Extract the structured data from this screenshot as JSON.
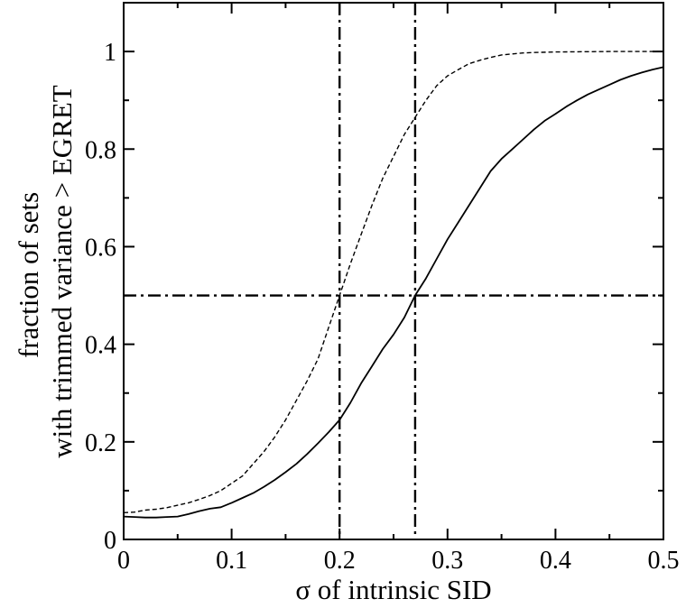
{
  "chart_data": {
    "type": "line",
    "title": "",
    "xlabel": "σ  of intrinsic SID",
    "ylabel_lines": [
      "fraction of sets",
      "with trimmed variance > EGRET"
    ],
    "xlim": [
      0,
      0.5
    ],
    "ylim": [
      0,
      1.1
    ],
    "x_ticks": [
      0,
      0.1,
      0.2,
      0.3,
      0.4,
      0.5
    ],
    "x_tick_labels": [
      "0",
      "0.1",
      "0.2",
      "0.3",
      "0.4",
      "0.5"
    ],
    "y_ticks": [
      0,
      0.2,
      0.4,
      0.6,
      0.8,
      1.0
    ],
    "y_tick_labels": [
      "0",
      "0.2",
      "0.4",
      "0.6",
      "0.8",
      "1"
    ],
    "grid": false,
    "legend": "none",
    "series": [
      {
        "style": "dashed",
        "color": "#000000",
        "points": [
          [
            0.0,
            0.055
          ],
          [
            0.01,
            0.056
          ],
          [
            0.02,
            0.06
          ],
          [
            0.03,
            0.062
          ],
          [
            0.04,
            0.065
          ],
          [
            0.05,
            0.07
          ],
          [
            0.06,
            0.075
          ],
          [
            0.07,
            0.082
          ],
          [
            0.08,
            0.09
          ],
          [
            0.09,
            0.1
          ],
          [
            0.1,
            0.115
          ],
          [
            0.11,
            0.13
          ],
          [
            0.12,
            0.155
          ],
          [
            0.13,
            0.18
          ],
          [
            0.14,
            0.21
          ],
          [
            0.15,
            0.245
          ],
          [
            0.16,
            0.285
          ],
          [
            0.17,
            0.325
          ],
          [
            0.18,
            0.37
          ],
          [
            0.19,
            0.435
          ],
          [
            0.2,
            0.5
          ],
          [
            0.21,
            0.565
          ],
          [
            0.22,
            0.625
          ],
          [
            0.23,
            0.685
          ],
          [
            0.24,
            0.74
          ],
          [
            0.25,
            0.785
          ],
          [
            0.26,
            0.83
          ],
          [
            0.27,
            0.865
          ],
          [
            0.28,
            0.9
          ],
          [
            0.29,
            0.93
          ],
          [
            0.3,
            0.95
          ],
          [
            0.31,
            0.963
          ],
          [
            0.32,
            0.975
          ],
          [
            0.33,
            0.982
          ],
          [
            0.34,
            0.988
          ],
          [
            0.35,
            0.993
          ],
          [
            0.36,
            0.995
          ],
          [
            0.37,
            0.997
          ],
          [
            0.38,
            0.998
          ],
          [
            0.4,
            0.999
          ],
          [
            0.45,
            1.0
          ],
          [
            0.5,
            1.0
          ]
        ]
      },
      {
        "style": "solid",
        "color": "#000000",
        "points": [
          [
            0.0,
            0.047
          ],
          [
            0.01,
            0.046
          ],
          [
            0.02,
            0.045
          ],
          [
            0.03,
            0.045
          ],
          [
            0.04,
            0.046
          ],
          [
            0.05,
            0.047
          ],
          [
            0.06,
            0.052
          ],
          [
            0.07,
            0.058
          ],
          [
            0.08,
            0.063
          ],
          [
            0.09,
            0.066
          ],
          [
            0.1,
            0.075
          ],
          [
            0.11,
            0.085
          ],
          [
            0.12,
            0.095
          ],
          [
            0.13,
            0.108
          ],
          [
            0.14,
            0.122
          ],
          [
            0.15,
            0.138
          ],
          [
            0.16,
            0.155
          ],
          [
            0.17,
            0.175
          ],
          [
            0.18,
            0.197
          ],
          [
            0.19,
            0.22
          ],
          [
            0.2,
            0.245
          ],
          [
            0.21,
            0.28
          ],
          [
            0.22,
            0.32
          ],
          [
            0.23,
            0.355
          ],
          [
            0.24,
            0.39
          ],
          [
            0.25,
            0.42
          ],
          [
            0.26,
            0.455
          ],
          [
            0.27,
            0.5
          ],
          [
            0.28,
            0.535
          ],
          [
            0.29,
            0.575
          ],
          [
            0.3,
            0.615
          ],
          [
            0.31,
            0.65
          ],
          [
            0.32,
            0.685
          ],
          [
            0.33,
            0.72
          ],
          [
            0.34,
            0.755
          ],
          [
            0.35,
            0.78
          ],
          [
            0.36,
            0.8
          ],
          [
            0.37,
            0.82
          ],
          [
            0.38,
            0.84
          ],
          [
            0.39,
            0.858
          ],
          [
            0.4,
            0.872
          ],
          [
            0.41,
            0.887
          ],
          [
            0.42,
            0.9
          ],
          [
            0.43,
            0.912
          ],
          [
            0.44,
            0.922
          ],
          [
            0.45,
            0.932
          ],
          [
            0.46,
            0.942
          ],
          [
            0.47,
            0.95
          ],
          [
            0.48,
            0.957
          ],
          [
            0.49,
            0.963
          ],
          [
            0.5,
            0.968
          ]
        ]
      }
    ],
    "reference_lines": [
      {
        "orientation": "vertical",
        "value": 0.2,
        "style": "dash-dot"
      },
      {
        "orientation": "vertical",
        "value": 0.27,
        "style": "dash-dot"
      },
      {
        "orientation": "horizontal",
        "value": 0.5,
        "style": "dash-dot"
      }
    ]
  }
}
